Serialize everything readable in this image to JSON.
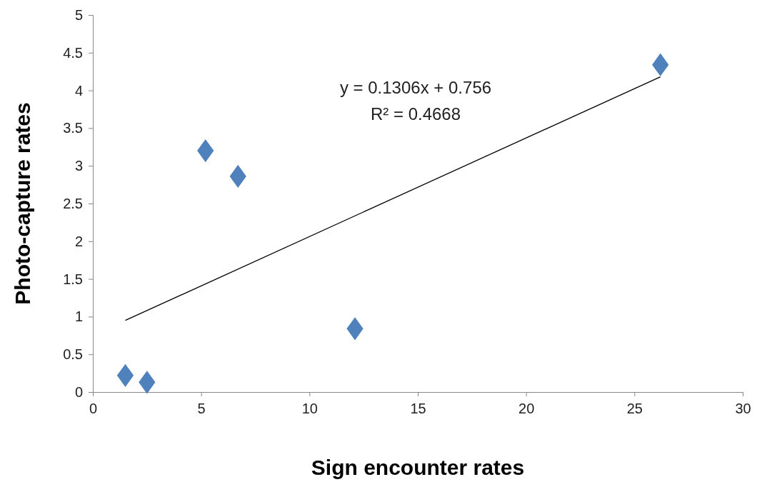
{
  "chart_data": {
    "type": "scatter",
    "xlabel": "Sign encounter rates",
    "ylabel": "Photo-capture rates",
    "xlim": [
      0,
      30
    ],
    "xticks": [
      0,
      5,
      10,
      15,
      20,
      25,
      30
    ],
    "ylim": [
      0,
      5
    ],
    "yticks": [
      0,
      0.5,
      1,
      1.5,
      2,
      2.5,
      3,
      3.5,
      4,
      4.5,
      5
    ],
    "grid": false,
    "series": [
      {
        "color": "#4f81bd",
        "marker": "diamond",
        "x": [
          1.5,
          2.5,
          5.2,
          6.7,
          12.1,
          26.2
        ],
        "values": [
          0.22,
          0.13,
          3.2,
          2.86,
          0.84,
          4.34
        ]
      },
      {
        "type": "line",
        "color": "#000000",
        "x": [
          1.5,
          26.2
        ],
        "values": [
          0.95,
          4.18
        ]
      }
    ],
    "annotations": [
      "y = 0.1306x + 0.756",
      "R² = 0.4668"
    ]
  }
}
